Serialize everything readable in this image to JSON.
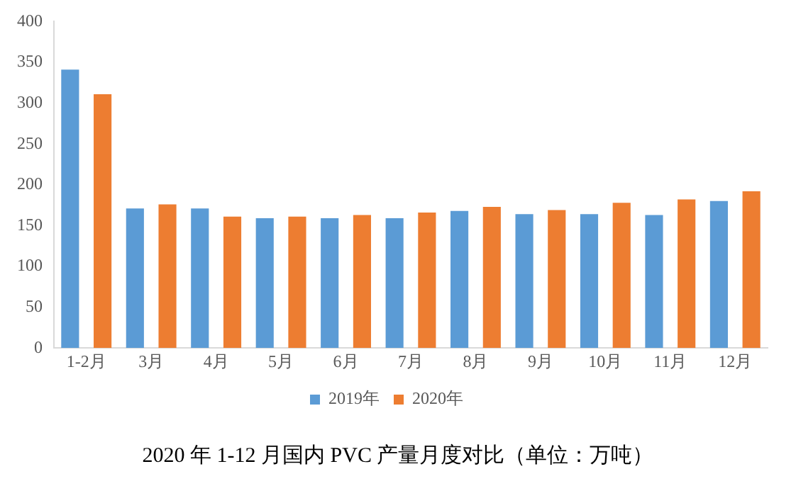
{
  "chart_data": {
    "type": "bar",
    "title": "2020 年 1-12 月国内 PVC 产量月度对比（单位：万吨）",
    "categories": [
      "1-2月",
      "3月",
      "4月",
      "5月",
      "6月",
      "7月",
      "8月",
      "9月",
      "10月",
      "11月",
      "12月"
    ],
    "series": [
      {
        "name": "2019年",
        "color": "#5b9bd5",
        "values": [
          341,
          171,
          171,
          159,
          159,
          159,
          168,
          164,
          164,
          163,
          180
        ]
      },
      {
        "name": "2020年",
        "color": "#ed7d31",
        "values": [
          311,
          176,
          161,
          161,
          163,
          166,
          173,
          169,
          178,
          182,
          192
        ]
      }
    ],
    "ylim": [
      0,
      400
    ],
    "yticks": [
      0,
      50,
      100,
      150,
      200,
      250,
      300,
      350,
      400
    ],
    "grid": false,
    "legend": "bottom"
  }
}
